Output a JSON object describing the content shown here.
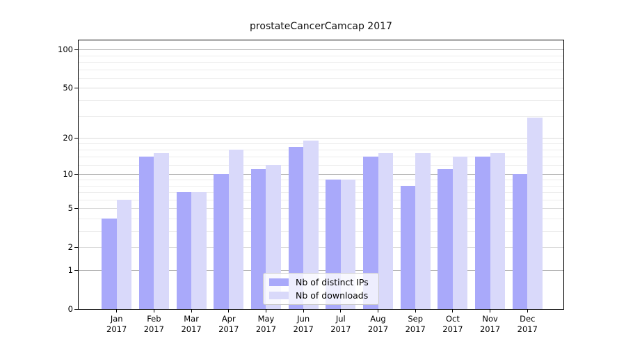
{
  "chart_data": {
    "type": "bar",
    "title": "prostateCancerCamcap 2017",
    "categories": [
      "Jan",
      "Feb",
      "Mar",
      "Apr",
      "May",
      "Jun",
      "Jul",
      "Aug",
      "Sep",
      "Oct",
      "Nov",
      "Dec"
    ],
    "year": "2017",
    "series": [
      {
        "name": "Nb of distinct IPs",
        "color": "#a9a9fa",
        "values": [
          4,
          14,
          7,
          10,
          11,
          17,
          9,
          14,
          8,
          11,
          14,
          10
        ]
      },
      {
        "name": "Nb of downloads",
        "color": "#d9d9fa",
        "values": [
          6,
          15,
          7,
          16,
          12,
          19,
          9,
          15,
          15,
          14,
          15,
          29
        ]
      }
    ],
    "xlabel": "",
    "ylabel": "",
    "y_axis": {
      "scale": "log1p",
      "ticks": [
        0,
        1,
        2,
        5,
        10,
        20,
        50,
        100
      ],
      "tick_labels": [
        "0",
        "1",
        "2",
        "5",
        "10",
        "20",
        "50",
        "100"
      ],
      "max_value": 118,
      "dark_gridlines": [
        1,
        10,
        100
      ],
      "minor_gridlines": [
        3,
        4,
        6,
        7,
        8,
        9,
        12,
        14,
        16,
        18,
        30,
        40,
        60,
        70,
        80,
        90
      ]
    },
    "grid": true,
    "grid_colors": {
      "dark": "#ababab",
      "major": "#d9d9d9",
      "minor": "#ececec"
    },
    "legend": {
      "position": "lower center",
      "entries": [
        "Nb of distinct IPs",
        "Nb of downloads"
      ]
    }
  }
}
